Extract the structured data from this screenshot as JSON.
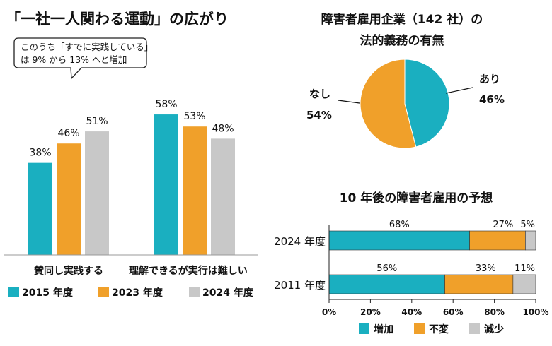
{
  "colors": {
    "series_2015": "#1AAFC0",
    "series_2023": "#F0A02A",
    "series_2024": "#C8C8C8",
    "increase": "#1AAFC0",
    "unchanged": "#F0A02A",
    "decrease": "#C8C8C8",
    "pie_yes": "#1AAFC0",
    "pie_no": "#F0A02A"
  },
  "chart_data": [
    {
      "type": "bar",
      "title": "「一社一人関わる運動」の広がり",
      "annotation": [
        "このうち「すでに実践している」",
        "は 9% から 13% へと増加"
      ],
      "categories": [
        "賛同し実践する",
        "理解できるが実行は難しい"
      ],
      "series": [
        {
          "name": "2015 年度",
          "values": [
            38,
            58
          ],
          "labels": [
            "38%",
            "58%"
          ]
        },
        {
          "name": "2023 年度",
          "values": [
            46,
            53
          ],
          "labels": [
            "46%",
            "53%"
          ]
        },
        {
          "name": "2024 年度",
          "values": [
            51,
            48
          ],
          "labels": [
            "51%",
            "48%"
          ]
        }
      ],
      "ylim": [
        0,
        75
      ],
      "legend": "bottom"
    },
    {
      "type": "pie",
      "title": [
        "障害者雇用企業（142 社）の",
        "法的義務の有無"
      ],
      "slices": [
        {
          "name": "あり",
          "value": 46,
          "label": "46%"
        },
        {
          "name": "なし",
          "value": 54,
          "label": "54%"
        }
      ]
    },
    {
      "type": "bar",
      "orientation": "horizontal",
      "stacked": true,
      "title": "10 年後の障害者雇用の予想",
      "categories": [
        "2024 年度",
        "2011 年度"
      ],
      "series": [
        {
          "name": "増加",
          "values": [
            68,
            56
          ],
          "labels": [
            "68%",
            "56%"
          ]
        },
        {
          "name": "不変",
          "values": [
            27,
            33
          ],
          "labels": [
            "27%",
            "33%"
          ]
        },
        {
          "name": "減少",
          "values": [
            5,
            11
          ],
          "labels": [
            "5%",
            "11%"
          ]
        }
      ],
      "xlim": [
        0,
        100
      ],
      "xticks": [
        "0%",
        "20%",
        "40%",
        "60%",
        "80%",
        "100%"
      ],
      "legend": "bottom"
    }
  ]
}
